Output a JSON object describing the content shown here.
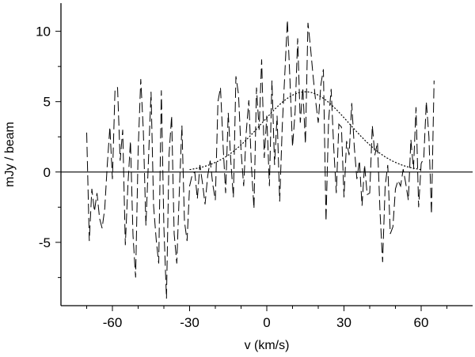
{
  "chart_data": {
    "type": "line",
    "title": "",
    "xlabel": "v (km/s)",
    "ylabel": "mJy / beam",
    "xlim": [
      -80,
      80
    ],
    "ylim": [
      -9.5,
      12
    ],
    "x_ticks": [
      -60,
      -30,
      0,
      30,
      60
    ],
    "y_ticks": [
      -5,
      0,
      5,
      10
    ],
    "grid": false,
    "legend": "none",
    "series": [
      {
        "style": "dashed",
        "x": [
          -70,
          -69,
          -68,
          -67,
          -66,
          -65,
          -64,
          -63,
          -62,
          -61,
          -60,
          -59,
          -58,
          -57,
          -56,
          -55,
          -54,
          -53,
          -52,
          -51,
          -50,
          -49,
          -48,
          -47,
          -46,
          -45,
          -44,
          -43,
          -42,
          -41,
          -40,
          -39,
          -38,
          -37,
          -36,
          -35,
          -34,
          -33,
          -32,
          -31,
          -30,
          -29,
          -28,
          -27,
          -26,
          -25,
          -24,
          -23,
          -22,
          -21,
          -20,
          -19,
          -18,
          -17,
          -16,
          -15,
          -14,
          -13,
          -12,
          -11,
          -10,
          -9,
          -8,
          -7,
          -6,
          -5,
          -4,
          -3,
          -2,
          -1,
          0,
          1,
          2,
          3,
          4,
          5,
          6,
          7,
          8,
          9,
          10,
          11,
          12,
          13,
          14,
          15,
          16,
          17,
          18,
          19,
          20,
          21,
          22,
          23,
          24,
          25,
          26,
          27,
          28,
          29,
          30,
          31,
          32,
          33,
          34,
          35,
          36,
          37,
          38,
          39,
          40,
          41,
          42,
          43,
          44,
          45,
          46,
          47,
          48,
          49,
          50,
          51,
          52,
          53,
          54,
          55,
          56,
          57,
          58,
          59,
          60,
          61,
          62,
          63,
          64,
          65
        ],
        "y": [
          2.8,
          -4.9,
          -1.2,
          -2.8,
          -1.5,
          -3.3,
          -4.0,
          -2.6,
          0.5,
          3.2,
          -0.5,
          5.9,
          6.0,
          0.8,
          3.0,
          -5.2,
          -1.0,
          2.2,
          -4.5,
          -7.5,
          1.5,
          6.6,
          3.0,
          -3.8,
          0.8,
          5.7,
          -2.4,
          -4.8,
          -6.5,
          5.8,
          -3.9,
          -9.0,
          1.2,
          4.0,
          -4.4,
          -6.5,
          -1.4,
          3.3,
          -3.5,
          -4.9,
          -1.0,
          -0.2,
          0.0,
          -1.9,
          0.5,
          -0.8,
          -2.3,
          -0.3,
          0.8,
          -0.9,
          -2.0,
          5.0,
          6.0,
          1.9,
          -1.5,
          4.2,
          0.8,
          -1.8,
          6.8,
          5.5,
          1.5,
          -1.0,
          2.8,
          5.1,
          0.5,
          -2.6,
          6.0,
          3.0,
          8.0,
          1.0,
          4.0,
          -1.0,
          6.5,
          0.5,
          4.0,
          -2.1,
          3.2,
          7.0,
          10.8,
          6.5,
          1.8,
          4.3,
          9.5,
          3.5,
          6.0,
          2.0,
          10.6,
          8.8,
          6.8,
          5.0,
          3.5,
          6.2,
          7.3,
          -3.5,
          3.6,
          5.9,
          1.8,
          -1.5,
          3.4,
          3.2,
          -1.8,
          2.2,
          1.2,
          4.9,
          1.8,
          -0.5,
          0.8,
          -2.4,
          0.5,
          -1.6,
          -1.5,
          3.3,
          1.2,
          2.1,
          -2.8,
          -6.4,
          -1.0,
          0.5,
          -4.4,
          -3.9,
          -1.2,
          -0.6,
          -1.0,
          0.2,
          -0.8,
          -2.0,
          2.3,
          0.2,
          4.6,
          -2.5,
          0.6,
          1.0,
          5.0,
          2.5,
          -3.0,
          6.5
        ]
      },
      {
        "style": "dotted",
        "name": "",
        "model": "gaussian",
        "amplitude": 5.7,
        "center": 15,
        "fwhm": 40,
        "x_range": [
          -30,
          60
        ]
      },
      {
        "style": "solid",
        "name": "",
        "x": [
          -80,
          80
        ],
        "y": [
          0,
          0
        ]
      }
    ]
  }
}
